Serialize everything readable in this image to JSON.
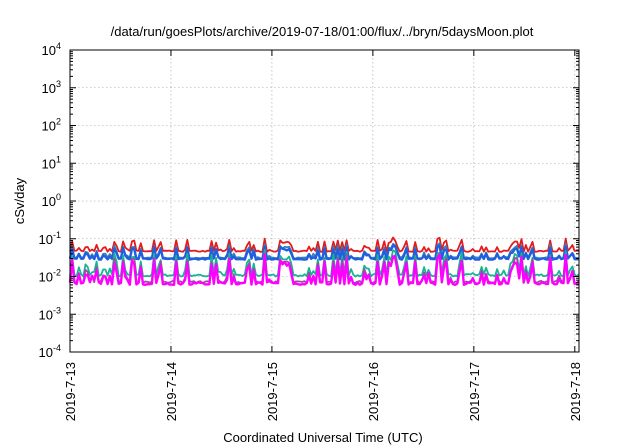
{
  "chart_data": {
    "type": "line",
    "title": "/data/run/goesPlots/archive/2019-07-18/01:00/flux/../bryn/5daysMoon.plot",
    "xlabel": "Coordinated Universal Time (UTC)",
    "ylabel": "cSv/day",
    "yscale": "log",
    "ylim": [
      0.0001,
      10000
    ],
    "y_ticks": [
      {
        "base": "10",
        "exp": "-4"
      },
      {
        "base": "10",
        "exp": "-3"
      },
      {
        "base": "10",
        "exp": "-2"
      },
      {
        "base": "10",
        "exp": "-1"
      },
      {
        "base": "10",
        "exp": "0"
      },
      {
        "base": "10",
        "exp": "1"
      },
      {
        "base": "10",
        "exp": "2"
      },
      {
        "base": "10",
        "exp": "3"
      },
      {
        "base": "10",
        "exp": "4"
      }
    ],
    "xlim": [
      "2019-07-13",
      "2019-07-18 01:00"
    ],
    "x_ticks": [
      "2019-7-13",
      "2019-7-14",
      "2019-7-15",
      "2019-7-16",
      "2019-7-17",
      "2019-7-18"
    ],
    "grid": true,
    "series": [
      {
        "color": "#e41a1c",
        "low": 0.045,
        "high": 0.11
      },
      {
        "color": "#377eb8",
        "low": 0.03,
        "high": 0.08
      },
      {
        "color": "#1f5fe0",
        "low": 0.028,
        "high": 0.07
      },
      {
        "color": "#1ab394",
        "low": 0.01,
        "high": 0.055
      },
      {
        "color": "#984ea3",
        "low": 0.0065,
        "high": 0.045
      },
      {
        "color": "#ff00ff",
        "low": 0.006,
        "high": 0.04
      }
    ]
  }
}
